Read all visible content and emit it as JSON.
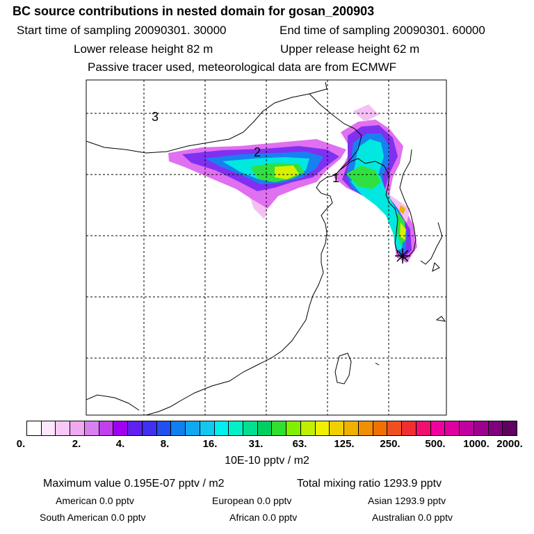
{
  "header": {
    "title": "BC  source contributions in nested domain for gosan_200903",
    "start_time": "Start time of sampling 20090301. 30000",
    "end_time": "End time of sampling 20090301. 60000",
    "lower_height": "Lower release height   82 m",
    "upper_height": "Upper release height   62 m",
    "tracer_info": "Passive tracer used, meteorological data are from ECMWF"
  },
  "map": {
    "region_labels": [
      "1",
      "2",
      "3"
    ],
    "receptor_marker": "star-marker"
  },
  "legend": {
    "ticks": [
      "0.",
      "2.",
      "4.",
      "8.",
      "16.",
      "31.",
      "63.",
      "125.",
      "250.",
      "500.",
      "1000.",
      "2000."
    ],
    "units": "10E-10 pptv / m2",
    "colors": [
      "#ffffff",
      "#ffe6ff",
      "#f8c8f8",
      "#f0a8f0",
      "#d880f0",
      "#c040f0",
      "#a000f0",
      "#6020f0",
      "#4030f0",
      "#2050f0",
      "#1080f0",
      "#10a8f0",
      "#10c8f0",
      "#00f0f0",
      "#00f0c8",
      "#00e090",
      "#00d060",
      "#30e030",
      "#80f000",
      "#c0f000",
      "#f0f000",
      "#f0d000",
      "#f0b000",
      "#f09000",
      "#f07000",
      "#f05020",
      "#f03030",
      "#f01070",
      "#f000a0",
      "#e000a0",
      "#c000a0",
      "#a00090",
      "#800080",
      "#600060"
    ]
  },
  "stats": {
    "max_value": "Maximum value  0.195E-07 pptv / m2",
    "total_mixing": "Total mixing ratio      1293.9 pptv",
    "american": "American        0.0 pptv",
    "european": "European       0.0 pptv",
    "asian": "Asian    1293.9 pptv",
    "south_american": "South American        0.0 pptv",
    "african": "African       0.0 pptv",
    "australian": "Australian        0.0 pptv"
  }
}
